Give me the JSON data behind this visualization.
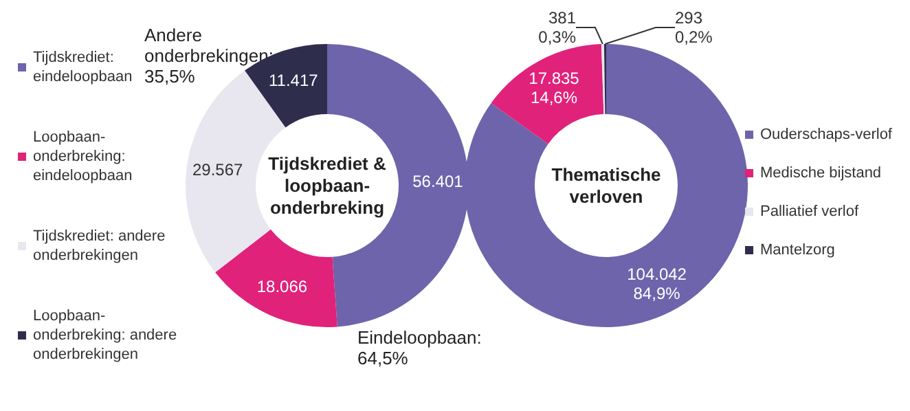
{
  "chart_data": [
    {
      "type": "donut",
      "title": "Tijdskrediet & loopbaan-onderbreking",
      "categories": [
        "Tijdskrediet: eindeloopbaan",
        "Loopbaan-onderbreking: eindeloopbaan",
        "Tijdskrediet: andere onderbrekingen",
        "Loopbaan-onderbreking: andere onderbrekingen"
      ],
      "values": [
        56401,
        18066,
        29567,
        11417
      ],
      "colors": [
        "#6e64ab",
        "#e0227a",
        "#e8e6ee",
        "#2f2d4c"
      ],
      "value_labels": [
        "56.401",
        "18.066",
        "29.567",
        "11.417"
      ],
      "legend": "left",
      "annotations": [
        "Andere onderbrekingen: 35,5%",
        "Eindeloopbaan: 64,5%"
      ]
    },
    {
      "type": "donut",
      "title": "Thematische verloven",
      "categories": [
        "Ouderschaps-verlof",
        "Medische bijstand",
        "Palliatief verlof",
        "Mantelzorg"
      ],
      "values": [
        104042,
        17835,
        381,
        293
      ],
      "colors": [
        "#6e64ab",
        "#e0227a",
        "#e8e6ee",
        "#2f2d4c"
      ],
      "value_labels": [
        "104.042\n84,9%",
        "17.835\n14,6%",
        "381\n0,3%",
        "293\n0,2%"
      ],
      "legend": "right"
    }
  ]
}
